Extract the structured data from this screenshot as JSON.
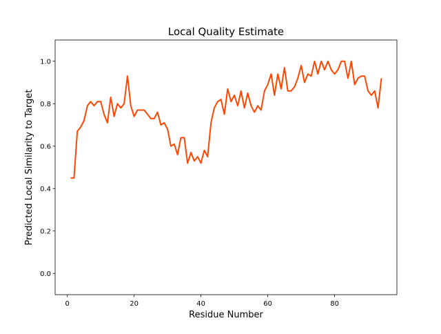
{
  "chart_data": {
    "type": "line",
    "title": "Local Quality Estimate",
    "xlabel": "Residue Number",
    "ylabel": "Predicted Local Similarity to Target",
    "xlim": [
      -3.65,
      98.65
    ],
    "ylim": [
      -0.1,
      1.1
    ],
    "xticks": [
      0,
      20,
      40,
      60,
      80
    ],
    "xtick_labels": [
      "0",
      "20",
      "40",
      "60",
      "80"
    ],
    "yticks": [
      0.0,
      0.2,
      0.4,
      0.6,
      0.8,
      1.0
    ],
    "ytick_labels": [
      "0.0",
      "0.2",
      "0.4",
      "0.6",
      "0.8",
      "1.0"
    ],
    "grid": false,
    "line_color": "#ff4500",
    "series": [
      {
        "x": [
          1,
          2,
          3,
          4,
          5,
          6,
          7,
          8,
          9,
          10,
          11,
          12,
          13,
          14,
          15,
          16,
          17,
          18,
          19,
          20,
          21,
          22,
          23,
          24,
          25,
          26,
          27,
          28,
          29,
          30,
          31,
          32,
          33,
          34,
          35,
          36,
          37,
          38,
          39,
          40,
          41,
          42,
          43,
          44,
          45,
          46,
          47,
          48,
          49,
          50,
          51,
          52,
          53,
          54,
          55,
          56,
          57,
          58,
          59,
          60,
          61,
          62,
          63,
          64,
          65,
          66,
          67,
          68,
          69,
          70,
          71,
          72,
          73,
          74,
          75,
          76,
          77,
          78,
          79,
          80,
          81,
          82,
          83,
          84,
          85,
          86,
          87,
          88,
          89,
          90,
          91,
          92,
          93,
          94
        ],
        "y": [
          0.45,
          0.45,
          0.67,
          0.69,
          0.72,
          0.79,
          0.81,
          0.79,
          0.81,
          0.81,
          0.75,
          0.71,
          0.83,
          0.74,
          0.8,
          0.78,
          0.8,
          0.93,
          0.79,
          0.74,
          0.77,
          0.77,
          0.77,
          0.75,
          0.73,
          0.73,
          0.76,
          0.7,
          0.71,
          0.68,
          0.6,
          0.61,
          0.56,
          0.64,
          0.64,
          0.52,
          0.57,
          0.53,
          0.55,
          0.52,
          0.58,
          0.55,
          0.71,
          0.78,
          0.81,
          0.82,
          0.75,
          0.87,
          0.81,
          0.84,
          0.79,
          0.86,
          0.78,
          0.85,
          0.79,
          0.76,
          0.79,
          0.77,
          0.86,
          0.89,
          0.94,
          0.84,
          0.94,
          0.87,
          0.97,
          0.86,
          0.86,
          0.88,
          0.92,
          0.98,
          0.9,
          0.94,
          0.93,
          1.0,
          0.94,
          1.0,
          0.96,
          1.0,
          0.96,
          0.94,
          0.96,
          1.0,
          1.0,
          0.92,
          1.0,
          0.89,
          0.92,
          0.93,
          0.93,
          0.86,
          0.84,
          0.86,
          0.78,
          0.92
        ]
      }
    ]
  }
}
